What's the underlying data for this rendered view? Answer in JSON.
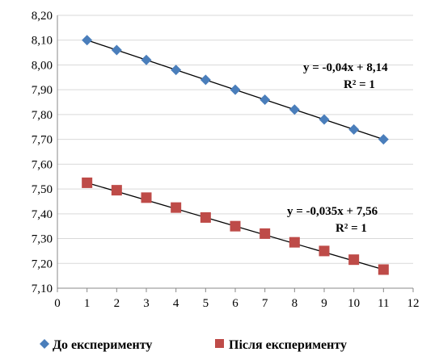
{
  "chart_data": {
    "type": "scatter",
    "xlim": [
      0,
      12
    ],
    "ylim": [
      7.1,
      8.2
    ],
    "x_ticks": [
      "0",
      "1",
      "2",
      "3",
      "4",
      "5",
      "6",
      "7",
      "8",
      "9",
      "10",
      "11",
      "12"
    ],
    "y_ticks": [
      "7,10",
      "7,20",
      "7,30",
      "7,40",
      "7,50",
      "7,60",
      "7,70",
      "7,80",
      "7,90",
      "8,00",
      "8,10",
      "8,20"
    ],
    "grid": "horizontal",
    "legend_position": "bottom",
    "series": [
      {
        "name": "До експерименту",
        "marker": "diamond",
        "color": "#4a7ebb",
        "x": [
          1,
          2,
          3,
          4,
          5,
          6,
          7,
          8,
          9,
          10,
          11
        ],
        "y": [
          8.1,
          8.06,
          8.02,
          7.98,
          7.94,
          7.9,
          7.86,
          7.82,
          7.78,
          7.74,
          7.7
        ],
        "trendline": {
          "slope": -0.04,
          "intercept": 8.14,
          "equation": "y = -0,04x + 8,14",
          "r2": "R² = 1"
        }
      },
      {
        "name": "Після експерименту",
        "marker": "square",
        "color": "#be4b48",
        "x": [
          1,
          2,
          3,
          4,
          5,
          6,
          7,
          8,
          9,
          10,
          11
        ],
        "y": [
          7.525,
          7.495,
          7.465,
          7.425,
          7.385,
          7.35,
          7.32,
          7.285,
          7.25,
          7.215,
          7.175
        ],
        "trendline": {
          "slope": -0.035,
          "intercept": 7.56,
          "equation": "y = -0,035x + 7,56",
          "r2": "R² = 1"
        }
      }
    ]
  }
}
